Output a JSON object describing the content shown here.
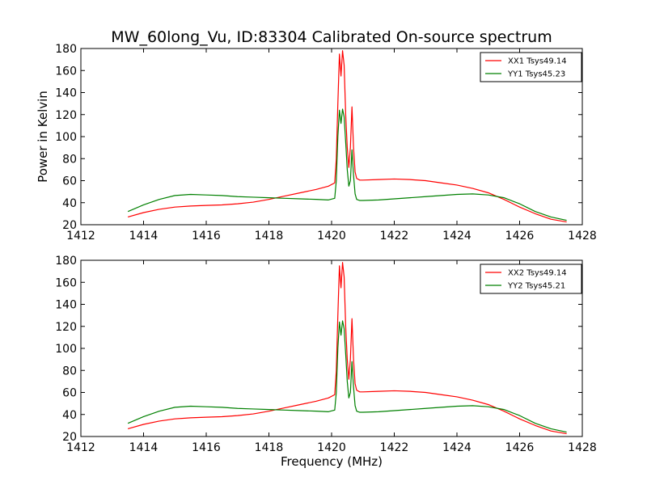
{
  "figure": {
    "title": "MW_60long_Vu, ID:83304 Calibrated On-source spectrum",
    "xlabel": "Frequency (MHz)"
  },
  "chart_data": [
    {
      "type": "line",
      "ylabel": "Power in Kelvin",
      "xlabel": "",
      "xlim": [
        1412,
        1428
      ],
      "ylim": [
        20,
        180
      ],
      "xticks": [
        1412,
        1414,
        1416,
        1418,
        1420,
        1422,
        1424,
        1426,
        1428
      ],
      "yticks": [
        20,
        40,
        60,
        80,
        100,
        120,
        140,
        160,
        180
      ],
      "legend_position": "top-right",
      "series": [
        {
          "name": "XX1 Tsys49.14",
          "color": "#ff0000",
          "x": [
            1413.5,
            1414.0,
            1414.5,
            1415.0,
            1415.5,
            1416.0,
            1416.5,
            1417.0,
            1417.5,
            1418.0,
            1418.5,
            1419.0,
            1419.5,
            1419.9,
            1420.1,
            1420.15,
            1420.2,
            1420.25,
            1420.3,
            1420.35,
            1420.4,
            1420.45,
            1420.5,
            1420.55,
            1420.6,
            1420.65,
            1420.7,
            1420.75,
            1420.8,
            1420.9,
            1421.0,
            1421.5,
            1422.0,
            1422.5,
            1423.0,
            1423.5,
            1424.0,
            1424.5,
            1425.0,
            1425.5,
            1426.0,
            1426.5,
            1427.0,
            1427.5
          ],
          "y": [
            27,
            31,
            34,
            36,
            37,
            37.5,
            38,
            39,
            40.5,
            43,
            46,
            49,
            52,
            55,
            58,
            80,
            130,
            175,
            155,
            178,
            165,
            120,
            90,
            72,
            90,
            127,
            90,
            68,
            62,
            60.5,
            60.5,
            61,
            61.5,
            61,
            60,
            58,
            56,
            53,
            49,
            43,
            36,
            30,
            25,
            22.5
          ]
        },
        {
          "name": "YY1 Tsys45.23",
          "color": "#008000",
          "x": [
            1413.5,
            1414.0,
            1414.5,
            1415.0,
            1415.5,
            1416.0,
            1416.5,
            1417.0,
            1417.5,
            1418.0,
            1418.5,
            1419.0,
            1419.5,
            1419.9,
            1420.1,
            1420.15,
            1420.2,
            1420.25,
            1420.3,
            1420.35,
            1420.4,
            1420.45,
            1420.5,
            1420.55,
            1420.6,
            1420.65,
            1420.7,
            1420.75,
            1420.8,
            1420.9,
            1421.0,
            1421.5,
            1422.0,
            1422.5,
            1423.0,
            1423.5,
            1424.0,
            1424.5,
            1425.0,
            1425.5,
            1426.0,
            1426.5,
            1427.0,
            1427.5
          ],
          "y": [
            32,
            38,
            43,
            46.5,
            47.5,
            47,
            46.5,
            45.5,
            45,
            44.5,
            44,
            43.5,
            43,
            42.5,
            44,
            60,
            100,
            124,
            112,
            125,
            118,
            95,
            70,
            55,
            60,
            88,
            65,
            48,
            43,
            42,
            42,
            42.5,
            43.5,
            44.5,
            45.5,
            46.5,
            47.5,
            48,
            47,
            44.5,
            39,
            32,
            27,
            24
          ]
        }
      ]
    },
    {
      "type": "line",
      "ylabel": "",
      "xlabel": "Frequency (MHz)",
      "xlim": [
        1412,
        1428
      ],
      "ylim": [
        20,
        180
      ],
      "xticks": [
        1412,
        1414,
        1416,
        1418,
        1420,
        1422,
        1424,
        1426,
        1428
      ],
      "yticks": [
        20,
        40,
        60,
        80,
        100,
        120,
        140,
        160,
        180
      ],
      "legend_position": "top-right",
      "series": [
        {
          "name": "XX2 Tsys49.14",
          "color": "#ff0000",
          "x": [
            1413.5,
            1414.0,
            1414.5,
            1415.0,
            1415.5,
            1416.0,
            1416.5,
            1417.0,
            1417.5,
            1418.0,
            1418.5,
            1419.0,
            1419.5,
            1419.9,
            1420.1,
            1420.15,
            1420.2,
            1420.25,
            1420.3,
            1420.35,
            1420.4,
            1420.45,
            1420.5,
            1420.55,
            1420.6,
            1420.65,
            1420.7,
            1420.75,
            1420.8,
            1420.9,
            1421.0,
            1421.5,
            1422.0,
            1422.5,
            1423.0,
            1423.5,
            1424.0,
            1424.5,
            1425.0,
            1425.5,
            1426.0,
            1426.5,
            1427.0,
            1427.5
          ],
          "y": [
            27,
            31,
            34,
            36,
            37,
            37.5,
            38,
            39,
            40.5,
            43,
            46,
            49,
            52,
            55,
            58,
            80,
            130,
            175,
            155,
            178,
            165,
            120,
            90,
            72,
            90,
            127,
            90,
            68,
            62,
            60.5,
            60.5,
            61,
            61.5,
            61,
            60,
            58,
            56,
            53,
            49,
            43,
            36,
            30,
            25,
            22.5
          ]
        },
        {
          "name": "YY2 Tsys45.21",
          "color": "#008000",
          "x": [
            1413.5,
            1414.0,
            1414.5,
            1415.0,
            1415.5,
            1416.0,
            1416.5,
            1417.0,
            1417.5,
            1418.0,
            1418.5,
            1419.0,
            1419.5,
            1419.9,
            1420.1,
            1420.15,
            1420.2,
            1420.25,
            1420.3,
            1420.35,
            1420.4,
            1420.45,
            1420.5,
            1420.55,
            1420.6,
            1420.65,
            1420.7,
            1420.75,
            1420.8,
            1420.9,
            1421.0,
            1421.5,
            1422.0,
            1422.5,
            1423.0,
            1423.5,
            1424.0,
            1424.5,
            1425.0,
            1425.5,
            1426.0,
            1426.5,
            1427.0,
            1427.5
          ],
          "y": [
            32,
            38,
            43,
            46.5,
            47.5,
            47,
            46.5,
            45.5,
            45,
            44.5,
            44,
            43.5,
            43,
            42.5,
            44,
            60,
            100,
            124,
            112,
            125,
            118,
            95,
            70,
            55,
            60,
            88,
            65,
            48,
            43,
            42,
            42,
            42.5,
            43.5,
            44.5,
            45.5,
            46.5,
            47.5,
            48,
            47,
            44.5,
            39,
            32,
            27,
            24
          ]
        }
      ]
    }
  ]
}
